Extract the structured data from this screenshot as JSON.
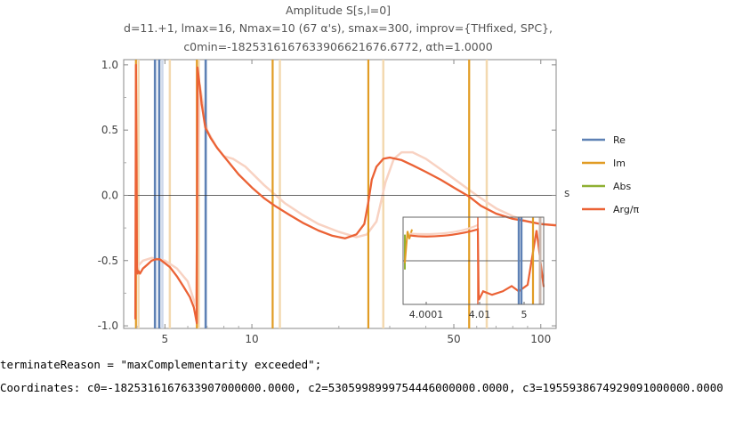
{
  "title": {
    "line1": "Amplitude S[s,l=0]",
    "line2": "d=11.+1, lmax=16, Nmax=10 (67 α's), smax=300, improv={THfixed, SPC},",
    "line3": "c0min=-1825316167633906621676.6772, αth=1.0000"
  },
  "console": {
    "line1": "terminateReason = \"maxComplementarity exceeded\";",
    "line2": "Coordinates: c0=-1825316167633907000000.0000, c2=5305998999754446000000.0000, c3=1955938674929091000000.0000"
  },
  "chart_data": {
    "type": "line",
    "xscale": "log",
    "xlim": [
      3.6,
      113
    ],
    "ylim": [
      -1.02,
      1.04
    ],
    "xlabel": "s",
    "ylabel": "",
    "x_ticks": [
      5,
      10,
      50,
      100
    ],
    "y_ticks": [
      -1.0,
      -0.5,
      0.0,
      0.5,
      1.0
    ],
    "legend": [
      {
        "name": "Re",
        "color": "#5e81b5"
      },
      {
        "name": "Im",
        "color": "#e19c24"
      },
      {
        "name": "Abs",
        "color": "#8fb032"
      },
      {
        "name": "Arg/π",
        "color": "#eb6235"
      }
    ],
    "re_vertical_lines_x": [
      4.62,
      4.78,
      6.92
    ],
    "im_vertical_lines_x": [
      3.97,
      6.45,
      11.8,
      25.3,
      56.5
    ],
    "faint_im_vertical_lines_x": [
      4.05,
      5.2,
      6.55,
      12.5,
      28.5,
      65
    ],
    "faint_re_vertical_lines_x": [
      4.9
    ],
    "series": [
      {
        "name": "Arg/π",
        "x": [
          3.95,
          3.97,
          3.99,
          4.0,
          4.02,
          4.05,
          4.1,
          4.2,
          4.35,
          4.5,
          4.65,
          4.8,
          5.0,
          5.2,
          5.5,
          5.8,
          6.1,
          6.3,
          6.45,
          6.48,
          6.55,
          6.7,
          6.9,
          7.2,
          7.6,
          8.2,
          9.0,
          10.0,
          11.0,
          12.0,
          13.5,
          15.0,
          17.0,
          19.0,
          21.0,
          23.0,
          24.5,
          25.3,
          26.0,
          27.0,
          28.5,
          30.0,
          33.0,
          36.0,
          40.0,
          45.0,
          50.0,
          56.5,
          62.0,
          70.0,
          80.0,
          90.0,
          100.0,
          113.0
        ],
        "values": [
          -0.95,
          1.0,
          0.2,
          -0.55,
          -0.6,
          -0.58,
          -0.6,
          -0.56,
          -0.53,
          -0.5,
          -0.49,
          -0.49,
          -0.52,
          -0.55,
          -0.62,
          -0.7,
          -0.78,
          -0.86,
          -0.98,
          0.98,
          0.9,
          0.7,
          0.52,
          0.44,
          0.36,
          0.27,
          0.16,
          0.06,
          -0.02,
          -0.08,
          -0.15,
          -0.21,
          -0.27,
          -0.31,
          -0.33,
          -0.3,
          -0.22,
          -0.05,
          0.12,
          0.22,
          0.28,
          0.29,
          0.27,
          0.23,
          0.18,
          0.12,
          0.06,
          -0.01,
          -0.08,
          -0.14,
          -0.18,
          -0.2,
          -0.22,
          -0.23
        ]
      },
      {
        "name": "Arg/π (faint)",
        "x": [
          4.0,
          4.2,
          4.5,
          5.0,
          5.5,
          6.0,
          6.4,
          6.6,
          7.0,
          7.5,
          8.0,
          8.6,
          9.5,
          11.0,
          13.0,
          15.0,
          17.0,
          20.0,
          23.0,
          25.0,
          27.0,
          29.0,
          31.0,
          33.0,
          36.0,
          40.0,
          45.0,
          52.0,
          60.0,
          70.0,
          80.0,
          90.0,
          100.0,
          113.0
        ],
        "values": [
          -0.55,
          -0.5,
          -0.48,
          -0.5,
          -0.56,
          -0.66,
          -0.85,
          0.85,
          0.5,
          0.38,
          0.3,
          0.28,
          0.22,
          0.08,
          -0.06,
          -0.15,
          -0.22,
          -0.28,
          -0.32,
          -0.3,
          -0.2,
          0.1,
          0.28,
          0.33,
          0.33,
          0.28,
          0.2,
          0.1,
          0.0,
          -0.1,
          -0.16,
          -0.2,
          -0.22,
          -0.23
        ]
      }
    ],
    "inset": {
      "x_ticks": [
        "4.0001",
        "4.01",
        "5"
      ],
      "ylim": [
        -1,
        1
      ]
    }
  }
}
